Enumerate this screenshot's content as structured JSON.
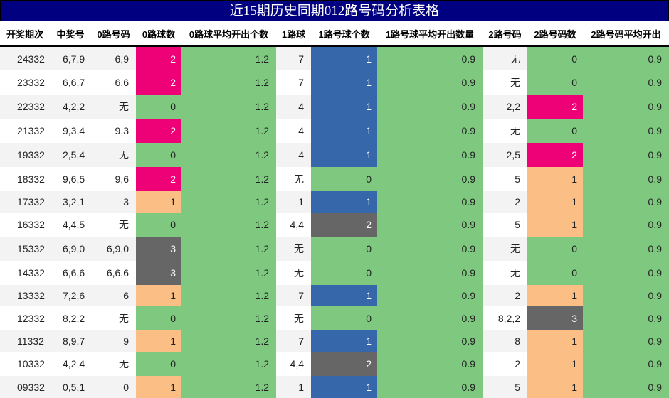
{
  "title": "近15期历史同期012路号码分析表格",
  "colors": {
    "header_bg": "#000080",
    "green": "#7ec87f",
    "magenta": "#ee0077",
    "blue": "#3767ab",
    "gray": "#666666",
    "peach": "#fbbf86"
  },
  "columns": [
    "开奖期次",
    "中奖号",
    "0路号码",
    "0路球数",
    "0路球平均开出个数",
    "1路球",
    "1路号球个数",
    "1路号球平均开出数量",
    "2路号码",
    "2路号码数",
    "2路号码平均开出"
  ],
  "rows": [
    {
      "period": "24332",
      "number": "6,7,9",
      "r0": "6,9",
      "r0_count": "2",
      "r0_avg": "1.2",
      "r1": "7",
      "r1_count": "1",
      "r1_avg": "0.9",
      "r2": "无",
      "r2_count": "0",
      "r2_avg": "0.9"
    },
    {
      "period": "23332",
      "number": "6,6,7",
      "r0": "6,6",
      "r0_count": "2",
      "r0_avg": "1.2",
      "r1": "7",
      "r1_count": "1",
      "r1_avg": "0.9",
      "r2": "无",
      "r2_count": "0",
      "r2_avg": "0.9"
    },
    {
      "period": "22332",
      "number": "4,2,2",
      "r0": "无",
      "r0_count": "0",
      "r0_avg": "1.2",
      "r1": "4",
      "r1_count": "1",
      "r1_avg": "0.9",
      "r2": "2,2",
      "r2_count": "2",
      "r2_avg": "0.9"
    },
    {
      "period": "21332",
      "number": "9,3,4",
      "r0": "9,3",
      "r0_count": "2",
      "r0_avg": "1.2",
      "r1": "4",
      "r1_count": "1",
      "r1_avg": "0.9",
      "r2": "无",
      "r2_count": "0",
      "r2_avg": "0.9"
    },
    {
      "period": "19332",
      "number": "2,5,4",
      "r0": "无",
      "r0_count": "0",
      "r0_avg": "1.2",
      "r1": "4",
      "r1_count": "1",
      "r1_avg": "0.9",
      "r2": "2,5",
      "r2_count": "2",
      "r2_avg": "0.9"
    },
    {
      "period": "18332",
      "number": "9,6,5",
      "r0": "9,6",
      "r0_count": "2",
      "r0_avg": "1.2",
      "r1": "无",
      "r1_count": "0",
      "r1_avg": "0.9",
      "r2": "5",
      "r2_count": "1",
      "r2_avg": "0.9"
    },
    {
      "period": "17332",
      "number": "3,2,1",
      "r0": "3",
      "r0_count": "1",
      "r0_avg": "1.2",
      "r1": "1",
      "r1_count": "1",
      "r1_avg": "0.9",
      "r2": "2",
      "r2_count": "1",
      "r2_avg": "0.9"
    },
    {
      "period": "16332",
      "number": "4,4,5",
      "r0": "无",
      "r0_count": "0",
      "r0_avg": "1.2",
      "r1": "4,4",
      "r1_count": "2",
      "r1_avg": "0.9",
      "r2": "5",
      "r2_count": "1",
      "r2_avg": "0.9"
    },
    {
      "period": "15332",
      "number": "6,9,0",
      "r0": "6,9,0",
      "r0_count": "3",
      "r0_avg": "1.2",
      "r1": "无",
      "r1_count": "0",
      "r1_avg": "0.9",
      "r2": "无",
      "r2_count": "0",
      "r2_avg": "0.9"
    },
    {
      "period": "14332",
      "number": "6,6,6",
      "r0": "6,6,6",
      "r0_count": "3",
      "r0_avg": "1.2",
      "r1": "无",
      "r1_count": "0",
      "r1_avg": "0.9",
      "r2": "无",
      "r2_count": "0",
      "r2_avg": "0.9"
    },
    {
      "period": "13332",
      "number": "7,2,6",
      "r0": "6",
      "r0_count": "1",
      "r0_avg": "1.2",
      "r1": "7",
      "r1_count": "1",
      "r1_avg": "0.9",
      "r2": "2",
      "r2_count": "1",
      "r2_avg": "0.9"
    },
    {
      "period": "12332",
      "number": "8,2,2",
      "r0": "无",
      "r0_count": "0",
      "r0_avg": "1.2",
      "r1": "无",
      "r1_count": "0",
      "r1_avg": "0.9",
      "r2": "8,2,2",
      "r2_count": "3",
      "r2_avg": "0.9"
    },
    {
      "period": "11332",
      "number": "8,9,7",
      "r0": "9",
      "r0_count": "1",
      "r0_avg": "1.2",
      "r1": "7",
      "r1_count": "1",
      "r1_avg": "0.9",
      "r2": "8",
      "r2_count": "1",
      "r2_avg": "0.9"
    },
    {
      "period": "10332",
      "number": "4,2,4",
      "r0": "无",
      "r0_count": "0",
      "r0_avg": "1.2",
      "r1": "4,4",
      "r1_count": "2",
      "r1_avg": "0.9",
      "r2": "2",
      "r2_count": "1",
      "r2_avg": "0.9"
    },
    {
      "period": "09332",
      "number": "0,5,1",
      "r0": "0",
      "r0_count": "1",
      "r0_avg": "1.2",
      "r1": "1",
      "r1_count": "1",
      "r1_avg": "0.9",
      "r2": "5",
      "r2_count": "1",
      "r2_avg": "0.9"
    }
  ]
}
